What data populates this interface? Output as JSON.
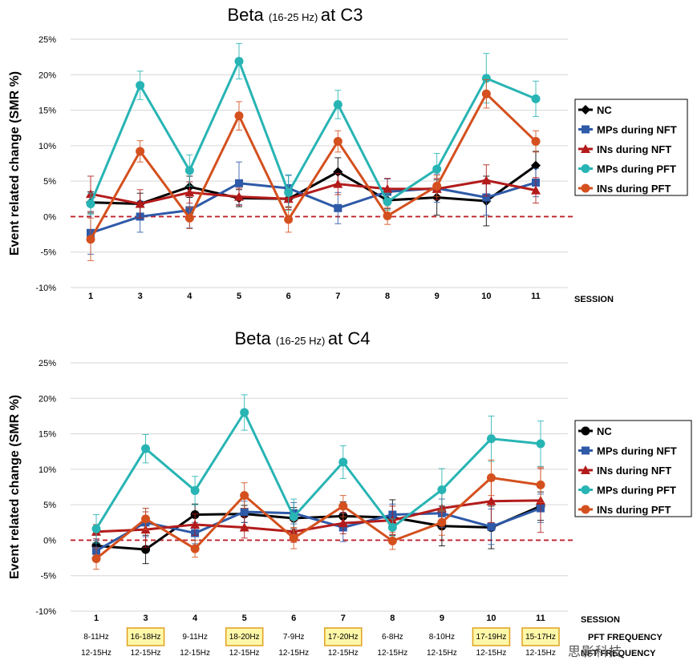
{
  "chart_data": [
    {
      "type": "line",
      "title": "at C3",
      "title_main": "Beta",
      "title_band": "(16-25 Hz)",
      "ylabel": "Event related change (SMR %)",
      "xlabel": "SESSION",
      "categories": [
        "1",
        "3",
        "4",
        "5",
        "6",
        "7",
        "8",
        "9",
        "10",
        "11"
      ],
      "y_ticks": [
        "25%",
        "20%",
        "15%",
        "10%",
        "5%",
        "0%",
        "-5%",
        "-10%"
      ],
      "ylim": [
        -10,
        25
      ],
      "legend_position": "right",
      "series": [
        {
          "name": "NC",
          "color": "#000000",
          "marker": "diamond",
          "values": [
            2.0,
            1.8,
            4.2,
            2.6,
            2.5,
            6.3,
            2.3,
            2.7,
            2.2,
            7.2
          ],
          "errors": [
            1.5,
            1.5,
            1.5,
            1.2,
            1.2,
            2.0,
            1.2,
            2.5,
            3.5,
            2.0
          ]
        },
        {
          "name": "MPs during NFT",
          "color": "#2e5aa8",
          "marker": "square",
          "values": [
            -2.3,
            0.0,
            0.9,
            4.7,
            4.0,
            1.2,
            3.5,
            4.0,
            2.7,
            4.8
          ],
          "errors": [
            3.0,
            2.2,
            2.5,
            3.0,
            1.8,
            2.2,
            1.8,
            2.0,
            2.5,
            2.0
          ]
        },
        {
          "name": "INs during NFT",
          "color": "#b31b1b",
          "marker": "triangle",
          "values": [
            3.2,
            1.8,
            3.4,
            2.8,
            2.5,
            4.6,
            3.9,
            3.9,
            5.1,
            3.7
          ],
          "errors": [
            2.5,
            2.0,
            1.5,
            1.2,
            1.5,
            1.5,
            1.5,
            1.5,
            2.2,
            1.8
          ]
        },
        {
          "name": "MPs during PFT",
          "color": "#28b4b4",
          "marker": "circle",
          "values": [
            1.8,
            18.5,
            6.5,
            21.9,
            3.4,
            15.8,
            2.1,
            6.7,
            19.5,
            16.6
          ],
          "errors": [
            1.5,
            2.0,
            2.2,
            2.5,
            2.5,
            2.0,
            1.2,
            2.2,
            3.5,
            2.5
          ]
        },
        {
          "name": "INs during PFT",
          "color": "#d4501e",
          "marker": "circle",
          "values": [
            -3.2,
            9.2,
            -0.2,
            14.2,
            -0.4,
            10.6,
            0.1,
            4.3,
            17.3,
            10.6
          ],
          "errors": [
            3.0,
            1.5,
            1.5,
            2.0,
            1.8,
            1.5,
            1.2,
            1.5,
            2.0,
            1.5
          ]
        }
      ]
    },
    {
      "type": "line",
      "title": "at C4",
      "title_main": "Beta",
      "title_band": "(16-25 Hz)",
      "ylabel": "Event related change (SMR %)",
      "xlabel": "SESSION",
      "categories": [
        "1",
        "3",
        "4",
        "5",
        "6",
        "7",
        "8",
        "9",
        "10",
        "11"
      ],
      "y_ticks": [
        "25%",
        "20%",
        "15%",
        "10%",
        "5%",
        "0%",
        "-5%",
        "-10%"
      ],
      "ylim": [
        -10,
        25
      ],
      "legend_position": "right",
      "pft_frequency_label": "PFT FREQUENCY",
      "nft_frequency_label": "NFT FREQUENCY",
      "pft_frequency": [
        "8-11Hz",
        "16-18Hz",
        "9-11Hz",
        "18-20Hz",
        "7-9Hz",
        "17-20Hz",
        "6-8Hz",
        "8-10Hz",
        "17-19Hz",
        "15-17Hz"
      ],
      "pft_highlight": [
        false,
        true,
        false,
        true,
        false,
        true,
        false,
        false,
        true,
        true
      ],
      "nft_frequency": [
        "12-15Hz",
        "12-15Hz",
        "12-15Hz",
        "12-15Hz",
        "12-15Hz",
        "12-15Hz",
        "12-15Hz",
        "12-15Hz",
        "12-15Hz",
        "12-15Hz"
      ],
      "series": [
        {
          "name": "NC",
          "color": "#000000",
          "marker": "circle",
          "values": [
            -0.8,
            -1.3,
            3.6,
            3.7,
            3.1,
            3.4,
            3.2,
            2.0,
            1.8,
            4.8
          ],
          "errors": [
            1.5,
            2.0,
            1.5,
            1.2,
            1.5,
            2.0,
            2.5,
            2.8,
            3.0,
            2.0
          ]
        },
        {
          "name": "MPs during NFT",
          "color": "#2e5aa8",
          "marker": "square",
          "values": [
            -1.5,
            2.5,
            1.0,
            4.0,
            3.8,
            1.8,
            3.6,
            3.8,
            1.9,
            4.5
          ],
          "errors": [
            1.5,
            2.0,
            1.5,
            1.5,
            1.5,
            2.0,
            1.5,
            2.0,
            2.5,
            2.0
          ]
        },
        {
          "name": "INs during NFT",
          "color": "#b31b1b",
          "marker": "triangle",
          "values": [
            1.2,
            1.5,
            2.2,
            1.8,
            1.2,
            2.4,
            2.8,
            4.5,
            5.5,
            5.6
          ],
          "errors": [
            1.0,
            2.5,
            1.5,
            1.5,
            1.5,
            1.5,
            2.0,
            2.5,
            3.0,
            4.5
          ]
        },
        {
          "name": "MPs during PFT",
          "color": "#28b4b4",
          "marker": "circle",
          "values": [
            1.6,
            12.9,
            7.0,
            18.0,
            3.3,
            11.0,
            1.8,
            7.1,
            14.3,
            13.6
          ],
          "errors": [
            2.0,
            2.0,
            2.0,
            2.5,
            2.5,
            2.3,
            1.2,
            3.0,
            3.2,
            3.2
          ]
        },
        {
          "name": "INs during PFT",
          "color": "#d4501e",
          "marker": "circle",
          "values": [
            -2.6,
            3.0,
            -1.2,
            6.3,
            0.3,
            4.8,
            -0.1,
            2.5,
            8.8,
            7.8
          ],
          "errors": [
            1.5,
            1.5,
            1.2,
            1.8,
            1.5,
            1.5,
            1.2,
            1.8,
            2.5,
            2.5
          ]
        }
      ]
    }
  ],
  "watermark": "思影科技"
}
